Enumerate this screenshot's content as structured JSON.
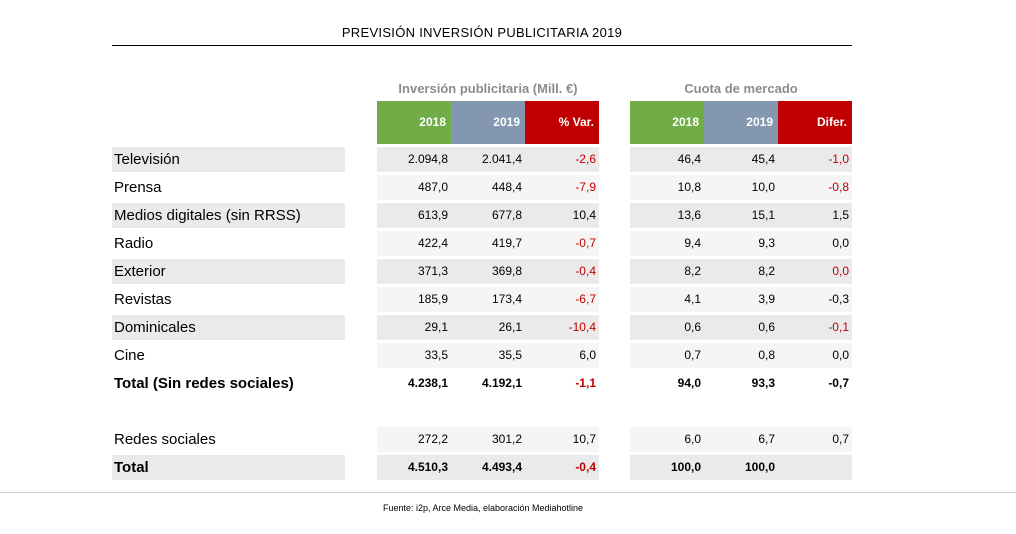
{
  "title": "PREVISIÓN INVERSIÓN PUBLICITARIA  2019",
  "groups": {
    "inversion": "Inversión publicitaria (Mill. €)",
    "cuota": "Cuota de mercado"
  },
  "headers": {
    "inv_2018": "2018",
    "inv_2019": "2019",
    "inv_var": "% Var.",
    "cuota_2018": "2018",
    "cuota_2019": "2019",
    "cuota_difer": "Difer."
  },
  "colors": {
    "green": "#70ad47",
    "blue": "#8497b0",
    "red": "#c00000",
    "shade": "#eaeaea"
  },
  "rows": [
    {
      "label": "Televisión",
      "inv2018": "2.094,8",
      "inv2019": "2.041,4",
      "var": "-2,6",
      "c2018": "46,4",
      "c2019": "45,4",
      "difer": "-1,0"
    },
    {
      "label": "Prensa",
      "inv2018": "487,0",
      "inv2019": "448,4",
      "var": "-7,9",
      "c2018": "10,8",
      "c2019": "10,0",
      "difer": "-0,8"
    },
    {
      "label": "Medios digitales (sin RRSS)",
      "inv2018": "613,9",
      "inv2019": "677,8",
      "var": "10,4",
      "c2018": "13,6",
      "c2019": "15,1",
      "difer": "1,5"
    },
    {
      "label": "Radio",
      "inv2018": "422,4",
      "inv2019": "419,7",
      "var": "-0,7",
      "c2018": "9,4",
      "c2019": "9,3",
      "difer": "0,0"
    },
    {
      "label": "Exterior",
      "inv2018": "371,3",
      "inv2019": "369,8",
      "var": "-0,4",
      "c2018": "8,2",
      "c2019": "8,2",
      "difer": "0,0"
    },
    {
      "label": "Revistas",
      "inv2018": "185,9",
      "inv2019": "173,4",
      "var": "-6,7",
      "c2018": "4,1",
      "c2019": "3,9",
      "difer": "-0,3"
    },
    {
      "label": "Dominicales",
      "inv2018": "29,1",
      "inv2019": "26,1",
      "var": "-10,4",
      "c2018": "0,6",
      "c2019": "0,6",
      "difer": "-0,1"
    },
    {
      "label": "Cine",
      "inv2018": "33,5",
      "inv2019": "35,5",
      "var": "6,0",
      "c2018": "0,7",
      "c2019": "0,8",
      "difer": "0,0"
    },
    {
      "label": "Total (Sin redes sociales)",
      "inv2018": "4.238,1",
      "inv2019": "4.192,1",
      "var": "-1,1",
      "c2018": "94,0",
      "c2019": "93,3",
      "difer": "-0,7"
    },
    {
      "label": "Redes sociales",
      "inv2018": "272,2",
      "inv2019": "301,2",
      "var": "10,7",
      "c2018": "6,0",
      "c2019": "6,7",
      "difer": "0,7"
    },
    {
      "label": "Total",
      "inv2018": "4.510,3",
      "inv2019": "4.493,4",
      "var": "-0,4",
      "c2018": "100,0",
      "c2019": "100,0",
      "difer": ""
    }
  ],
  "source": "Fuente: i2p, Arce Media, elaboración Mediahotline"
}
